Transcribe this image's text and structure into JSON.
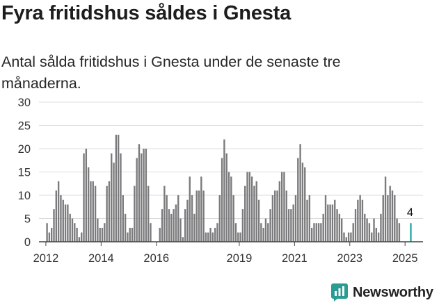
{
  "header": {
    "title": "Fyra fritidshus såldes i Gnesta",
    "subtitle": "Antal sålda fritidshus i Gnesta under de senaste tre månaderna."
  },
  "colors": {
    "bar": "#7b7b7d",
    "highlight": "#2aa7a1",
    "grid": "#dcdcdc",
    "axis": "#444444",
    "brand": "#2a9c94"
  },
  "brand": {
    "name": "Newsworthy",
    "icon": "newsworthy-chart-icon"
  },
  "chart_data": {
    "type": "bar",
    "title": "",
    "xlabel": "",
    "ylabel": "",
    "ylim": [
      0,
      30
    ],
    "yticks": [
      0,
      5,
      10,
      15,
      20,
      25,
      30
    ],
    "xlim": [
      2011.75,
      2025.65
    ],
    "xticks": [
      {
        "value": 2012,
        "label": "2012"
      },
      {
        "value": 2014,
        "label": "2014"
      },
      {
        "value": 2016,
        "label": "2016"
      },
      {
        "value": 2019,
        "label": "2019"
      },
      {
        "value": 2021,
        "label": "2021"
      },
      {
        "value": 2023,
        "label": "2023"
      },
      {
        "value": 2025,
        "label": "2025"
      }
    ],
    "grid": true,
    "start_month": "2012-01",
    "values": [
      4,
      2,
      3,
      7,
      11,
      13,
      10,
      9,
      8,
      8,
      6,
      5,
      4,
      3,
      1,
      2,
      19,
      20,
      16,
      13,
      13,
      12,
      5,
      3,
      3,
      4,
      12,
      13,
      19,
      17,
      23,
      23,
      19,
      10,
      6,
      2,
      3,
      3,
      12,
      18,
      21,
      19,
      20,
      20,
      12,
      4,
      0,
      0,
      0,
      3,
      7,
      12,
      10,
      7,
      6,
      7,
      8,
      10,
      5,
      1,
      7,
      9,
      14,
      10,
      6,
      11,
      11,
      14,
      11,
      2,
      2,
      3,
      2,
      3,
      4,
      10,
      18,
      22,
      19,
      15,
      14,
      10,
      4,
      2,
      2,
      7,
      12,
      15,
      15,
      14,
      12,
      13,
      9,
      4,
      3,
      5,
      4,
      7,
      10,
      11,
      11,
      13,
      15,
      15,
      11,
      7,
      7,
      8,
      10,
      18,
      21,
      17,
      16,
      9,
      10,
      3,
      4,
      4,
      4,
      4,
      6,
      10,
      8,
      8,
      8,
      9,
      7,
      6,
      5,
      2,
      1,
      2,
      2,
      4,
      7,
      9,
      10,
      9,
      6,
      5,
      4,
      2,
      5,
      3,
      2,
      6,
      10,
      14,
      10,
      12,
      11,
      10,
      5,
      4
    ],
    "highlight": {
      "month": "2025-03",
      "value": 4,
      "label": "4"
    }
  }
}
